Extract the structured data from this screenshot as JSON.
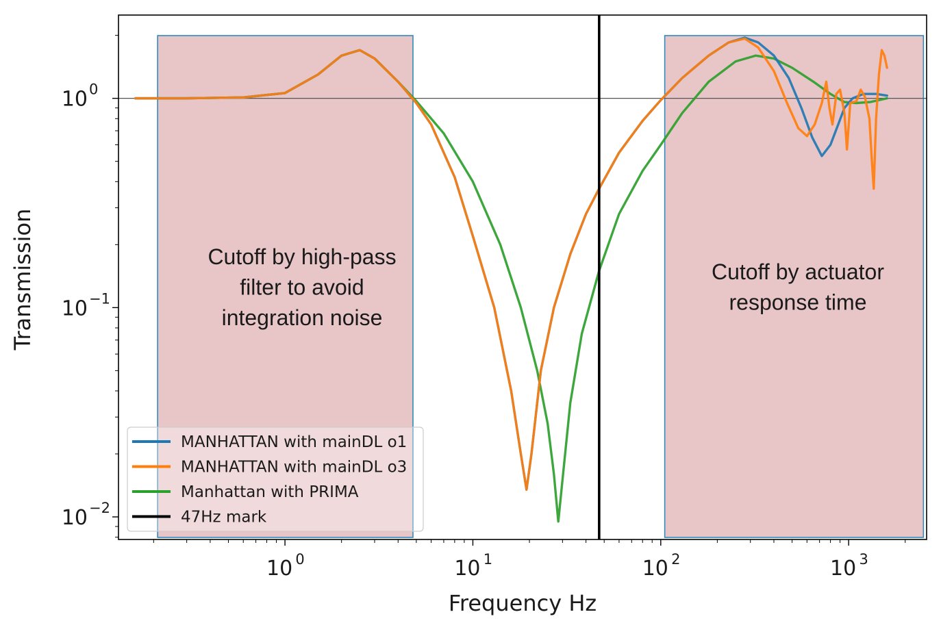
{
  "chart_data": {
    "type": "line",
    "xscale": "log",
    "yscale": "log",
    "title": "",
    "xlabel": "Frequency Hz",
    "ylabel": "Transmission",
    "xlim": [
      0.13,
      2600
    ],
    "ylim": [
      0.0078,
      2.5
    ],
    "x_ticks": [
      {
        "value": 1,
        "base": "10",
        "exp": "0"
      },
      {
        "value": 10,
        "base": "10",
        "exp": "1"
      },
      {
        "value": 100,
        "base": "10",
        "exp": "2"
      },
      {
        "value": 1000,
        "base": "10",
        "exp": "3"
      }
    ],
    "y_ticks": [
      {
        "value": 1,
        "base": "10",
        "exp": "0"
      },
      {
        "value": 0.1,
        "base": "10",
        "exp": "−1"
      },
      {
        "value": 0.01,
        "base": "10",
        "exp": "−2"
      }
    ],
    "reference_line": {
      "y": 1,
      "color": "#555555"
    },
    "vertical_mark": {
      "x": 47,
      "label": "47Hz mark",
      "color": "#000000"
    },
    "shaded_regions": [
      {
        "x": [
          0.21,
          4.8
        ],
        "label_lines": [
          "Cutoff by high-pass",
          "filter to avoid",
          "integration noise"
        ]
      },
      {
        "x": [
          105,
          2500
        ],
        "label_lines": [
          "Cutoff by actuator",
          "response time"
        ]
      }
    ],
    "region_fill": "#d9a0a4",
    "region_border": "#2f8bbd",
    "series": [
      {
        "name": "MANHATTAN with mainDL o1",
        "color": "#1f77b4",
        "points": [
          [
            0.16,
            1.0
          ],
          [
            0.3,
            1.0
          ],
          [
            0.6,
            1.01
          ],
          [
            1.0,
            1.06
          ],
          [
            1.5,
            1.3
          ],
          [
            2.0,
            1.6
          ],
          [
            2.5,
            1.7
          ],
          [
            3.0,
            1.55
          ],
          [
            4.0,
            1.2
          ],
          [
            5.0,
            0.95
          ],
          [
            6.0,
            0.75
          ],
          [
            8.0,
            0.42
          ],
          [
            10.0,
            0.22
          ],
          [
            13.0,
            0.1
          ],
          [
            16.0,
            0.04
          ],
          [
            18.0,
            0.02
          ],
          [
            19.3,
            0.0135
          ],
          [
            20.5,
            0.02
          ],
          [
            23.0,
            0.05
          ],
          [
            27.0,
            0.1
          ],
          [
            33.0,
            0.18
          ],
          [
            40.0,
            0.28
          ],
          [
            47.0,
            0.37
          ],
          [
            60.0,
            0.55
          ],
          [
            80.0,
            0.78
          ],
          [
            100.0,
            0.98
          ],
          [
            130.0,
            1.25
          ],
          [
            180.0,
            1.6
          ],
          [
            230.0,
            1.85
          ],
          [
            280.0,
            1.95
          ],
          [
            330.0,
            1.85
          ],
          [
            400.0,
            1.6
          ],
          [
            480.0,
            1.25
          ],
          [
            560.0,
            0.9
          ],
          [
            640.0,
            0.65
          ],
          [
            720.0,
            0.53
          ],
          [
            800.0,
            0.6
          ],
          [
            880.0,
            0.75
          ],
          [
            950.0,
            0.9
          ],
          [
            1050.0,
            1.0
          ],
          [
            1200.0,
            1.05
          ],
          [
            1400.0,
            1.05
          ],
          [
            1600.0,
            1.03
          ]
        ]
      },
      {
        "name": "MANHATTAN with mainDL o3",
        "color": "#ff7f0e",
        "points": [
          [
            0.16,
            1.0
          ],
          [
            0.3,
            1.0
          ],
          [
            0.6,
            1.01
          ],
          [
            1.0,
            1.06
          ],
          [
            1.5,
            1.3
          ],
          [
            2.0,
            1.6
          ],
          [
            2.5,
            1.7
          ],
          [
            3.0,
            1.55
          ],
          [
            4.0,
            1.2
          ],
          [
            5.0,
            0.95
          ],
          [
            6.0,
            0.75
          ],
          [
            8.0,
            0.42
          ],
          [
            10.0,
            0.22
          ],
          [
            13.0,
            0.1
          ],
          [
            16.0,
            0.04
          ],
          [
            18.0,
            0.02
          ],
          [
            19.3,
            0.0135
          ],
          [
            20.5,
            0.02
          ],
          [
            23.0,
            0.05
          ],
          [
            27.0,
            0.1
          ],
          [
            33.0,
            0.18
          ],
          [
            40.0,
            0.28
          ],
          [
            47.0,
            0.37
          ],
          [
            60.0,
            0.55
          ],
          [
            80.0,
            0.78
          ],
          [
            100.0,
            0.98
          ],
          [
            130.0,
            1.25
          ],
          [
            180.0,
            1.6
          ],
          [
            230.0,
            1.85
          ],
          [
            280.0,
            1.93
          ],
          [
            330.0,
            1.75
          ],
          [
            400.0,
            1.35
          ],
          [
            470.0,
            0.95
          ],
          [
            540.0,
            0.72
          ],
          [
            600.0,
            0.66
          ],
          [
            660.0,
            0.75
          ],
          [
            720.0,
            0.95
          ],
          [
            760.0,
            1.2
          ],
          [
            790.0,
            0.9
          ],
          [
            820.0,
            0.75
          ],
          [
            860.0,
            1.05
          ],
          [
            900.0,
            1.1
          ],
          [
            950.0,
            0.85
          ],
          [
            980.0,
            0.57
          ],
          [
            1020.0,
            0.95
          ],
          [
            1100.0,
            0.97
          ],
          [
            1160.0,
            1.1
          ],
          [
            1220.0,
            1.02
          ],
          [
            1290.0,
            0.8
          ],
          [
            1330.0,
            0.5
          ],
          [
            1360.0,
            0.37
          ],
          [
            1400.0,
            0.8
          ],
          [
            1450.0,
            1.3
          ],
          [
            1500.0,
            1.7
          ],
          [
            1550.0,
            1.6
          ],
          [
            1600.0,
            1.4
          ]
        ]
      },
      {
        "name": "Manhattan with PRIMA",
        "color": "#2ca02c",
        "points": [
          [
            0.16,
            1.0
          ],
          [
            0.3,
            1.0
          ],
          [
            0.6,
            1.01
          ],
          [
            1.0,
            1.06
          ],
          [
            1.5,
            1.3
          ],
          [
            2.0,
            1.6
          ],
          [
            2.5,
            1.7
          ],
          [
            3.0,
            1.55
          ],
          [
            4.0,
            1.2
          ],
          [
            5.0,
            0.97
          ],
          [
            7.0,
            0.68
          ],
          [
            10.0,
            0.4
          ],
          [
            14.0,
            0.2
          ],
          [
            18.0,
            0.1
          ],
          [
            22.0,
            0.05
          ],
          [
            25.0,
            0.028
          ],
          [
            27.0,
            0.016
          ],
          [
            28.5,
            0.0095
          ],
          [
            30.0,
            0.015
          ],
          [
            33.0,
            0.035
          ],
          [
            38.0,
            0.075
          ],
          [
            47.0,
            0.15
          ],
          [
            60.0,
            0.28
          ],
          [
            80.0,
            0.45
          ],
          [
            100.0,
            0.6
          ],
          [
            130.0,
            0.85
          ],
          [
            180.0,
            1.2
          ],
          [
            250.0,
            1.5
          ],
          [
            320.0,
            1.6
          ],
          [
            400.0,
            1.55
          ],
          [
            500.0,
            1.4
          ],
          [
            650.0,
            1.2
          ],
          [
            800.0,
            1.05
          ],
          [
            950.0,
            0.96
          ],
          [
            1100.0,
            0.95
          ],
          [
            1300.0,
            0.96
          ],
          [
            1600.0,
            1.0
          ]
        ]
      }
    ],
    "legend": {
      "placement": "lower-left",
      "entries": [
        {
          "label": "MANHATTAN with mainDL o1",
          "color": "#1f77b4"
        },
        {
          "label": "MANHATTAN with mainDL o3",
          "color": "#ff7f0e"
        },
        {
          "label": "Manhattan with PRIMA",
          "color": "#2ca02c"
        },
        {
          "label": "47Hz mark",
          "color": "#000000"
        }
      ]
    }
  }
}
